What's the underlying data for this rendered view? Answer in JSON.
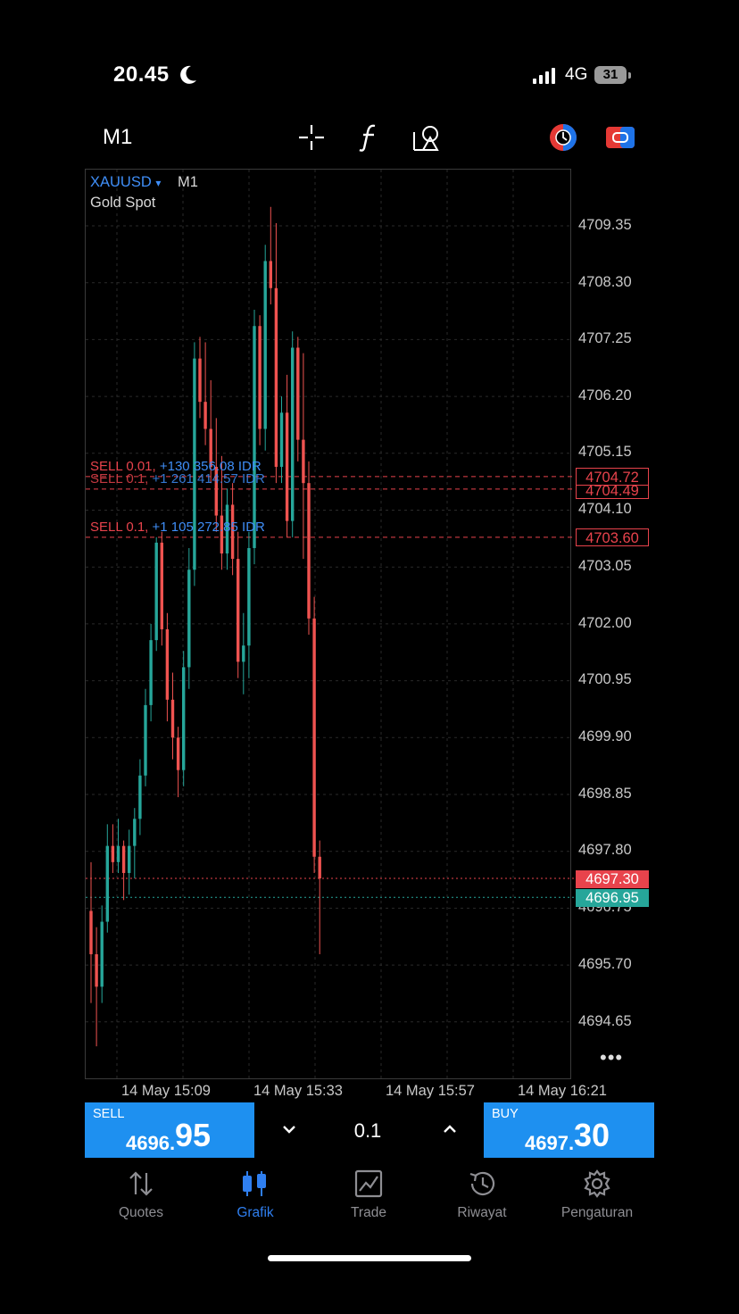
{
  "status_bar": {
    "time": "20.45",
    "network": "4G",
    "battery": "31"
  },
  "toolbar": {
    "timeframe": "M1",
    "icons": [
      "crosshair-icon",
      "indicator-f-icon",
      "objects-icon",
      "one-click-trading-icon",
      "chart-type-icon"
    ]
  },
  "chart": {
    "symbol": "XAUUSD",
    "symbol_arrow": "▾",
    "timeframe": "M1",
    "description": "Gold Spot",
    "price_levels": [
      "4709.35",
      "4708.30",
      "4707.25",
      "4706.20",
      "4705.15",
      "4704.10",
      "4703.05",
      "4702.00",
      "4700.95",
      "4699.90",
      "4698.85",
      "4697.80",
      "4696.75",
      "4695.70",
      "4694.65"
    ],
    "time_labels": [
      "14 May 15:09",
      "14 May 15:33",
      "14 May 15:57",
      "14 May 16:21"
    ],
    "order_lines": [
      {
        "side": "SELL",
        "volume": "0.01,",
        "profit": "+130 356.08 IDR",
        "price": "4704.72"
      },
      {
        "side": "SELL",
        "volume": "0.1,",
        "profit": "+1 261 414.57 IDR",
        "price": "4704.49"
      },
      {
        "side": "SELL",
        "volume": "0.1,",
        "profit": "+1 105 272.85 IDR",
        "price": "4703.60"
      }
    ],
    "ask_price": "4697.30",
    "bid_price": "4696.95",
    "more_label": "•••",
    "colors": {
      "bull": "#26a69a",
      "bear": "#ef5350",
      "sell_line": "#e8434c",
      "bid_line": "#26a69a",
      "accent": "#3f8ef7"
    },
    "candles": [
      {
        "o": 4696.7,
        "h": 4697.6,
        "l": 4695.0,
        "c": 4695.9
      },
      {
        "o": 4695.9,
        "h": 4696.4,
        "l": 4694.2,
        "c": 4695.3
      },
      {
        "o": 4695.3,
        "h": 4696.8,
        "l": 4695.0,
        "c": 4696.5
      },
      {
        "o": 4696.5,
        "h": 4698.3,
        "l": 4696.3,
        "c": 4697.9
      },
      {
        "o": 4697.9,
        "h": 4698.3,
        "l": 4697.4,
        "c": 4697.6
      },
      {
        "o": 4697.6,
        "h": 4698.4,
        "l": 4697.4,
        "c": 4697.9
      },
      {
        "o": 4697.9,
        "h": 4698.0,
        "l": 4696.9,
        "c": 4697.4
      },
      {
        "o": 4697.4,
        "h": 4698.2,
        "l": 4697.0,
        "c": 4697.9
      },
      {
        "o": 4697.9,
        "h": 4698.6,
        "l": 4697.3,
        "c": 4698.4
      },
      {
        "o": 4698.4,
        "h": 4699.5,
        "l": 4698.1,
        "c": 4699.2
      },
      {
        "o": 4699.2,
        "h": 4700.8,
        "l": 4699.0,
        "c": 4700.5
      },
      {
        "o": 4700.5,
        "h": 4702.0,
        "l": 4700.2,
        "c": 4701.7
      },
      {
        "o": 4701.7,
        "h": 4703.6,
        "l": 4701.5,
        "c": 4703.5
      },
      {
        "o": 4703.5,
        "h": 4703.7,
        "l": 4701.6,
        "c": 4701.9
      },
      {
        "o": 4701.9,
        "h": 4702.2,
        "l": 4700.2,
        "c": 4700.6
      },
      {
        "o": 4700.6,
        "h": 4701.1,
        "l": 4699.5,
        "c": 4699.9
      },
      {
        "o": 4699.9,
        "h": 4700.1,
        "l": 4698.8,
        "c": 4699.3
      },
      {
        "o": 4699.3,
        "h": 4701.5,
        "l": 4699.0,
        "c": 4701.2
      },
      {
        "o": 4701.2,
        "h": 4703.4,
        "l": 4700.8,
        "c": 4703.0
      },
      {
        "o": 4703.0,
        "h": 4707.2,
        "l": 4702.7,
        "c": 4706.9
      },
      {
        "o": 4706.9,
        "h": 4707.3,
        "l": 4705.8,
        "c": 4706.1
      },
      {
        "o": 4706.1,
        "h": 4707.2,
        "l": 4705.3,
        "c": 4705.6
      },
      {
        "o": 4705.6,
        "h": 4706.5,
        "l": 4704.6,
        "c": 4704.9
      },
      {
        "o": 4704.9,
        "h": 4705.8,
        "l": 4703.7,
        "c": 4704.0
      },
      {
        "o": 4704.0,
        "h": 4705.1,
        "l": 4703.0,
        "c": 4703.3
      },
      {
        "o": 4703.3,
        "h": 4704.5,
        "l": 4703.0,
        "c": 4704.2
      },
      {
        "o": 4704.2,
        "h": 4704.6,
        "l": 4702.9,
        "c": 4703.2
      },
      {
        "o": 4703.2,
        "h": 4703.7,
        "l": 4701.0,
        "c": 4701.3
      },
      {
        "o": 4701.3,
        "h": 4702.2,
        "l": 4700.7,
        "c": 4701.6
      },
      {
        "o": 4701.6,
        "h": 4703.7,
        "l": 4701.0,
        "c": 4703.4
      },
      {
        "o": 4703.4,
        "h": 4707.8,
        "l": 4703.1,
        "c": 4707.5
      },
      {
        "o": 4707.5,
        "h": 4707.7,
        "l": 4705.3,
        "c": 4705.6
      },
      {
        "o": 4705.6,
        "h": 4709.0,
        "l": 4705.2,
        "c": 4708.7
      },
      {
        "o": 4708.7,
        "h": 4709.7,
        "l": 4707.9,
        "c": 4708.2
      },
      {
        "o": 4708.2,
        "h": 4709.4,
        "l": 4704.6,
        "c": 4704.9
      },
      {
        "o": 4704.9,
        "h": 4706.2,
        "l": 4704.6,
        "c": 4705.9
      },
      {
        "o": 4705.9,
        "h": 4706.6,
        "l": 4703.6,
        "c": 4703.9
      },
      {
        "o": 4703.9,
        "h": 4707.4,
        "l": 4703.6,
        "c": 4707.1
      },
      {
        "o": 4707.1,
        "h": 4707.3,
        "l": 4705.0,
        "c": 4705.4
      },
      {
        "o": 4705.4,
        "h": 4707.0,
        "l": 4703.2,
        "c": 4704.6
      },
      {
        "o": 4704.6,
        "h": 4705.0,
        "l": 4701.8,
        "c": 4702.1
      },
      {
        "o": 4702.1,
        "h": 4702.5,
        "l": 4697.4,
        "c": 4697.7
      },
      {
        "o": 4697.7,
        "h": 4698.0,
        "l": 4695.9,
        "c": 4697.3
      }
    ]
  },
  "trade_panel": {
    "sell_label": "SELL",
    "sell_small": "4696.",
    "sell_big": "95",
    "buy_label": "BUY",
    "buy_small": "4697.",
    "buy_big": "30",
    "volume": "0.1"
  },
  "nav": [
    {
      "label": "Quotes",
      "icon": "quotes-arrows-icon",
      "active": false
    },
    {
      "label": "Grafik",
      "icon": "chart-candles-icon",
      "active": true
    },
    {
      "label": "Trade",
      "icon": "trade-chart-icon",
      "active": false
    },
    {
      "label": "Riwayat",
      "icon": "history-icon",
      "active": false
    },
    {
      "label": "Pengaturan",
      "icon": "gear-icon",
      "active": false
    }
  ]
}
